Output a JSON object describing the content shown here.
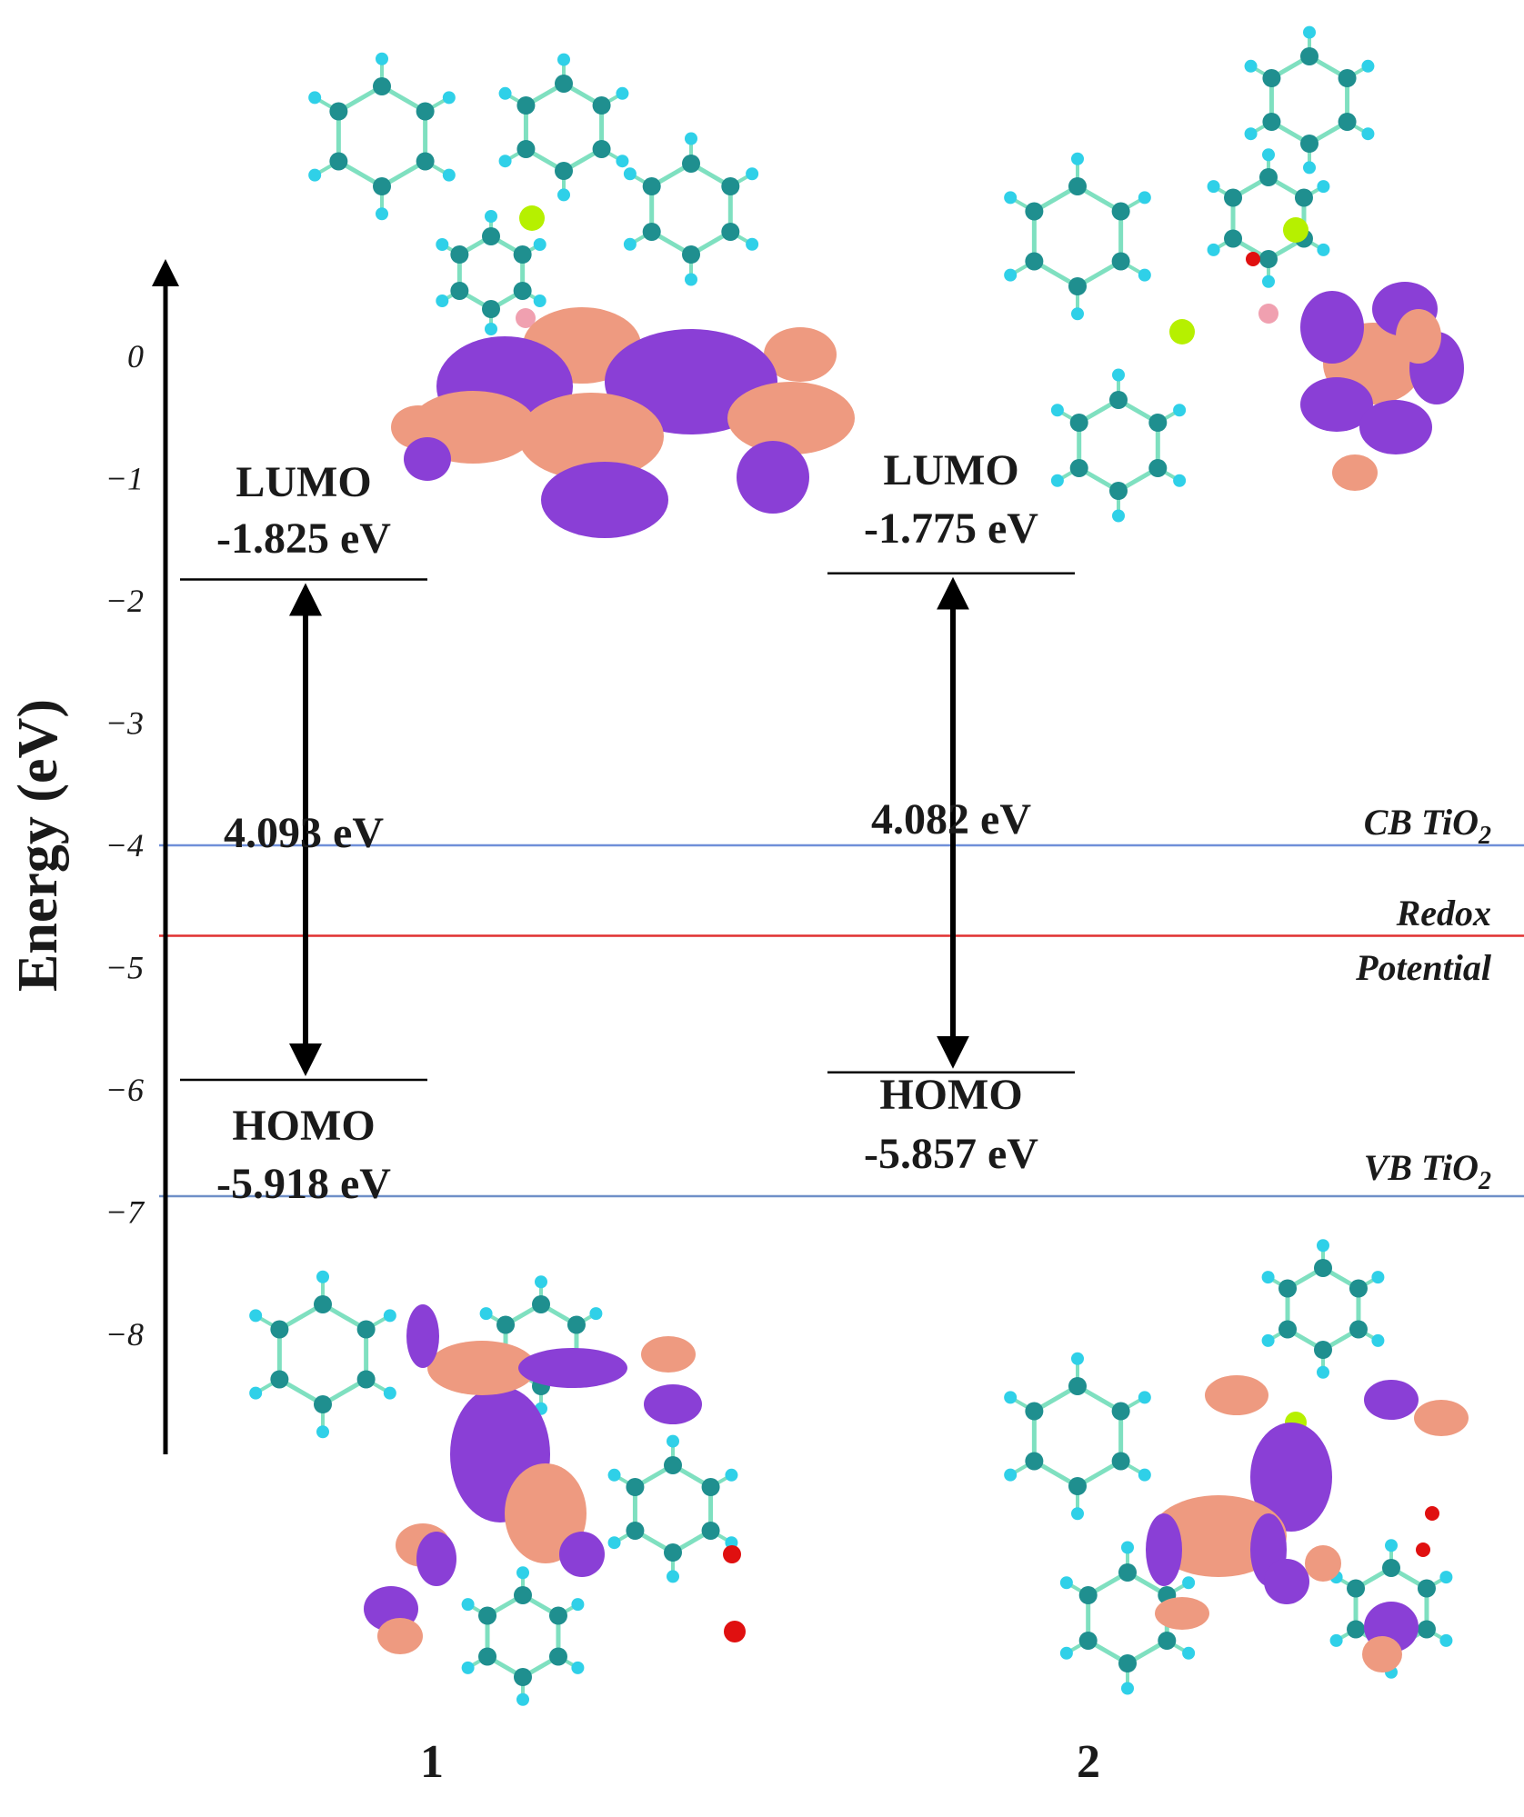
{
  "axis": {
    "label": "Energy (eV)",
    "ticks": [
      "0",
      "−1",
      "−2",
      "−3",
      "−4",
      "−5",
      "−6",
      "−7",
      "−8"
    ],
    "tick_values": [
      0,
      -1,
      -2,
      -3,
      -4,
      -5,
      -6,
      -7,
      -8
    ]
  },
  "compounds": [
    {
      "id": "1",
      "lumo_label": "LUMO",
      "lumo_value_text": "-1.825 eV",
      "lumo_ev": -1.825,
      "homo_label": "HOMO",
      "homo_value_text": "-5.918 eV",
      "homo_ev": -5.918,
      "gap_text": "4.093 eV"
    },
    {
      "id": "2",
      "lumo_label": "LUMO",
      "lumo_value_text": "-1.775 eV",
      "lumo_ev": -1.775,
      "homo_label": "HOMO",
      "homo_value_text": "-5.857 eV",
      "homo_ev": -5.857,
      "gap_text": "4.082 eV"
    }
  ],
  "reference_levels": [
    {
      "name": "CB TiO",
      "subscript": "2",
      "ev": -4.0,
      "color": "#6f8fd8"
    },
    {
      "name": "Redox",
      "name_line2": "Potential",
      "ev": -4.74,
      "color": "#e03030"
    },
    {
      "name": "VB TiO",
      "subscript": "2",
      "ev": -6.87,
      "color": "#6f8fc8"
    }
  ],
  "colors": {
    "orbital_positive": "#ee9a80",
    "orbital_negative": "#8a3fd6",
    "carbon": "#1f8f8f",
    "hydrogen": "#2fd0e8",
    "bond": "#7fe0c0",
    "phosphorus": "#b6f000",
    "metal": "#f0a0b0",
    "oxygen": "#e01010",
    "nitrogen": "#1010e0"
  }
}
